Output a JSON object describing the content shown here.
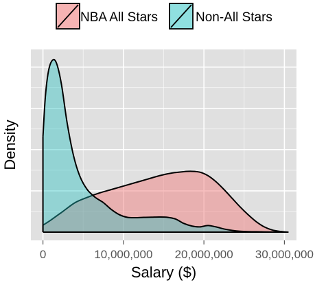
{
  "chart_data": {
    "type": "area",
    "xlabel": "Salary ($)",
    "ylabel": "Density",
    "xlim": [
      -1500000,
      31500000
    ],
    "ylim": [
      0,
      1.0
    ],
    "x_ticks": [
      0,
      10000000,
      20000000,
      30000000
    ],
    "x_tick_labels": [
      "0",
      "10,000,000",
      "20,000,000",
      "30,000,000"
    ],
    "grid": true,
    "legend_position": "top",
    "background_color": "#e0e0e0",
    "grid_color": "#ffffff",
    "series": [
      {
        "name": "NBA All Stars",
        "fill_color": "#f08080",
        "fill_opacity": 0.5,
        "points": [
          [
            0,
            0.04
          ],
          [
            1000000,
            0.07
          ],
          [
            2500000,
            0.12
          ],
          [
            4000000,
            0.17
          ],
          [
            5500000,
            0.2
          ],
          [
            7000000,
            0.225
          ],
          [
            8500000,
            0.245
          ],
          [
            10000000,
            0.265
          ],
          [
            11500000,
            0.285
          ],
          [
            13000000,
            0.305
          ],
          [
            14500000,
            0.325
          ],
          [
            16000000,
            0.34
          ],
          [
            17500000,
            0.348
          ],
          [
            18500000,
            0.35
          ],
          [
            19500000,
            0.345
          ],
          [
            20500000,
            0.325
          ],
          [
            21500000,
            0.29
          ],
          [
            22500000,
            0.245
          ],
          [
            23500000,
            0.195
          ],
          [
            24500000,
            0.145
          ],
          [
            25500000,
            0.1
          ],
          [
            26500000,
            0.06
          ],
          [
            27500000,
            0.03
          ],
          [
            28500000,
            0.012
          ],
          [
            29500000,
            0.004
          ],
          [
            30500000,
            0.0
          ]
        ]
      },
      {
        "name": "Non-All Stars",
        "fill_color": "#20c0c0",
        "fill_opacity": 0.4,
        "points": [
          [
            0,
            0.55
          ],
          [
            300000,
            0.78
          ],
          [
            700000,
            0.93
          ],
          [
            1200000,
            0.99
          ],
          [
            1700000,
            0.97
          ],
          [
            2300000,
            0.85
          ],
          [
            3000000,
            0.63
          ],
          [
            3800000,
            0.44
          ],
          [
            4600000,
            0.32
          ],
          [
            5500000,
            0.245
          ],
          [
            6500000,
            0.2
          ],
          [
            7500000,
            0.17
          ],
          [
            8500000,
            0.13
          ],
          [
            9500000,
            0.1
          ],
          [
            10500000,
            0.085
          ],
          [
            11500000,
            0.083
          ],
          [
            12500000,
            0.085
          ],
          [
            13500000,
            0.086
          ],
          [
            14500000,
            0.087
          ],
          [
            15500000,
            0.085
          ],
          [
            16500000,
            0.075
          ],
          [
            17500000,
            0.05
          ],
          [
            18500000,
            0.035
          ],
          [
            19500000,
            0.03
          ],
          [
            20500000,
            0.038
          ],
          [
            21500000,
            0.03
          ],
          [
            22500000,
            0.018
          ],
          [
            23500000,
            0.01
          ],
          [
            24500000,
            0.005
          ],
          [
            25500000,
            0.003
          ],
          [
            27000000,
            0.002
          ],
          [
            28500000,
            0.001
          ],
          [
            30500000,
            0.0
          ]
        ]
      }
    ]
  }
}
